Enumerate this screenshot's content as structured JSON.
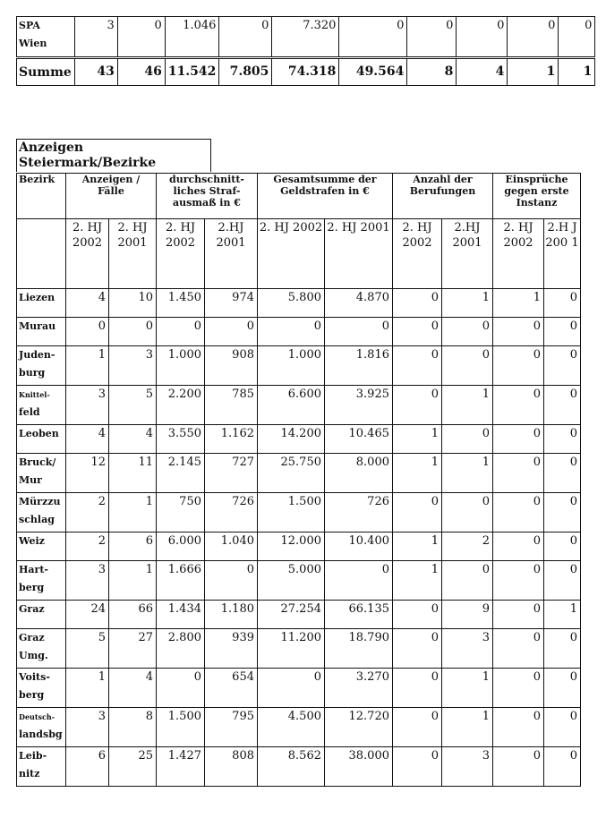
{
  "top_table": {
    "rows": [
      {
        "label": [
          "SPA",
          "Wien"
        ],
        "values": [
          "3",
          "0",
          "1.046",
          "0",
          "7.320",
          "0",
          "0",
          "0",
          "0",
          "0"
        ]
      },
      {
        "label": [
          "Summe"
        ],
        "values": [
          "43",
          "46",
          "11.542",
          "7.805",
          "74.318",
          "49.564",
          "8",
          "4",
          "1",
          "1"
        ]
      }
    ]
  },
  "section_title": [
    "Anzeigen",
    "Steiermark/Bezirke"
  ],
  "table": {
    "group_headers": [
      "Bezirk",
      "Anzeigen / Fälle",
      "durchschnitt-liches Straf-ausmaß in €",
      "Gesamtsumme der Geldstrafen in €",
      "Anzahl der Berufungen",
      "Einsprüche gegen erste Instanz"
    ],
    "sub_headers": [
      "2. HJ 2002",
      "2. HJ 2001",
      "2. HJ 2002",
      "2.HJ 2001",
      "2. HJ 2002",
      "2. HJ 2001",
      "2. HJ 2002",
      "2.HJ 2001",
      "2. HJ 2002",
      "2.H J 200 1"
    ],
    "rows": [
      {
        "label": [
          "Liezen"
        ],
        "values": [
          "4",
          "10",
          "1.450",
          "974",
          "5.800",
          "4.870",
          "0",
          "1",
          "1",
          "0"
        ]
      },
      {
        "label": [
          "Murau"
        ],
        "values": [
          "0",
          "0",
          "0",
          "0",
          "0",
          "0",
          "0",
          "0",
          "0",
          "0"
        ]
      },
      {
        "label": [
          "Juden-",
          "burg"
        ],
        "values": [
          "1",
          "3",
          "1.000",
          "908",
          "1.000",
          "1.816",
          "0",
          "0",
          "0",
          "0"
        ]
      },
      {
        "label": [
          "Knittel-",
          "feld"
        ],
        "values": [
          "3",
          "5",
          "2.200",
          "785",
          "6.600",
          "3.925",
          "0",
          "1",
          "0",
          "0"
        ]
      },
      {
        "label": [
          "Leoben"
        ],
        "values": [
          "4",
          "4",
          "3.550",
          "1.162",
          "14.200",
          "10.465",
          "1",
          "0",
          "0",
          "0"
        ]
      },
      {
        "label": [
          "Bruck/",
          "Mur"
        ],
        "values": [
          "12",
          "11",
          "2.145",
          "727",
          "25.750",
          "8.000",
          "1",
          "1",
          "0",
          "0"
        ]
      },
      {
        "label": [
          "Mürzzu",
          "schlag"
        ],
        "values": [
          "2",
          "1",
          "750",
          "726",
          "1.500",
          "726",
          "0",
          "0",
          "0",
          "0"
        ]
      },
      {
        "label": [
          "Weiz"
        ],
        "values": [
          "2",
          "6",
          "6.000",
          "1.040",
          "12.000",
          "10.400",
          "1",
          "2",
          "0",
          "0"
        ]
      },
      {
        "label": [
          "Hart-",
          "berg"
        ],
        "values": [
          "3",
          "1",
          "1.666",
          "0",
          "5.000",
          "0",
          "1",
          "0",
          "0",
          "0"
        ]
      },
      {
        "label": [
          "Graz"
        ],
        "values": [
          "24",
          "66",
          "1.434",
          "1.180",
          "27.254",
          "66.135",
          "0",
          "9",
          "0",
          "1"
        ]
      },
      {
        "label": [
          "Graz",
          "Umg."
        ],
        "values": [
          "5",
          "27",
          "2.800",
          "939",
          "11.200",
          "18.790",
          "0",
          "3",
          "0",
          "0"
        ]
      },
      {
        "label": [
          "Voits-",
          "berg"
        ],
        "values": [
          "1",
          "4",
          "0",
          "654",
          "0",
          "3.270",
          "0",
          "1",
          "0",
          "0"
        ]
      },
      {
        "label": [
          "Deutsch-",
          "landsbg"
        ],
        "values": [
          "3",
          "8",
          "1.500",
          "795",
          "4.500",
          "12.720",
          "0",
          "1",
          "0",
          "0"
        ]
      },
      {
        "label": [
          "Leib-",
          "nitz"
        ],
        "values": [
          "6",
          "25",
          "1.427",
          "808",
          "8.562",
          "38.000",
          "0",
          "3",
          "0",
          "0"
        ]
      }
    ]
  }
}
